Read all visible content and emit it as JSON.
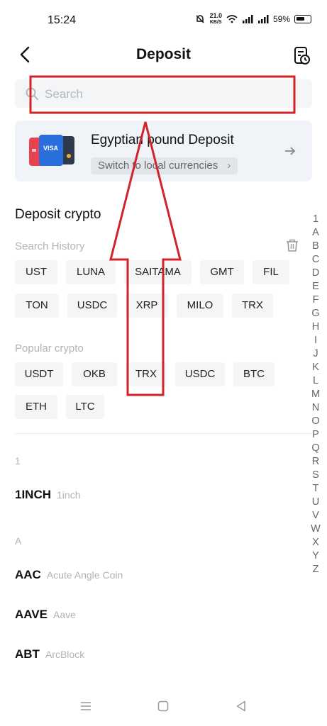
{
  "status_bar": {
    "time": "15:24",
    "net_speed_value": "21.0",
    "net_speed_unit": "KB/S",
    "battery": "59%"
  },
  "header": {
    "title": "Deposit"
  },
  "search": {
    "placeholder": "Search"
  },
  "fiat_card": {
    "title": "Egyptian pound Deposit",
    "switch_label": "Switch to local currencies",
    "card_brand": "VISA"
  },
  "deposit_crypto": {
    "heading": "Deposit crypto",
    "search_history_label": "Search History",
    "search_history": [
      "UST",
      "LUNA",
      "SAITAMA",
      "GMT",
      "FIL",
      "TON",
      "USDC",
      "XRP",
      "MILO",
      "TRX"
    ],
    "popular_label": "Popular crypto",
    "popular": [
      "USDT",
      "OKB",
      "TRX",
      "USDC",
      "BTC",
      "ETH",
      "LTC"
    ]
  },
  "coin_list": {
    "group_1": {
      "letter": "1",
      "items": [
        {
          "symbol": "1INCH",
          "name": "1inch"
        }
      ]
    },
    "group_a": {
      "letter": "A",
      "items": [
        {
          "symbol": "AAC",
          "name": "Acute Angle Coin"
        },
        {
          "symbol": "AAVE",
          "name": "Aave"
        },
        {
          "symbol": "ABT",
          "name": "ArcBlock"
        }
      ]
    }
  },
  "alphabet_index": [
    "1",
    "A",
    "B",
    "C",
    "D",
    "E",
    "F",
    "G",
    "H",
    "I",
    "J",
    "K",
    "L",
    "M",
    "N",
    "O",
    "P",
    "Q",
    "R",
    "S",
    "T",
    "U",
    "V",
    "W",
    "X",
    "Y",
    "Z"
  ],
  "colors": {
    "annotation_red": "#d2232a",
    "chip_bg": "#f4f5f7",
    "card_bg": "#f0f3f8",
    "muted_text": "#b0b3b9"
  },
  "icons": {
    "back": "back-arrow-icon",
    "history": "deposit-history-icon",
    "search": "search-icon",
    "trash": "trash-icon",
    "card_arrow": "arrow-right-icon"
  }
}
